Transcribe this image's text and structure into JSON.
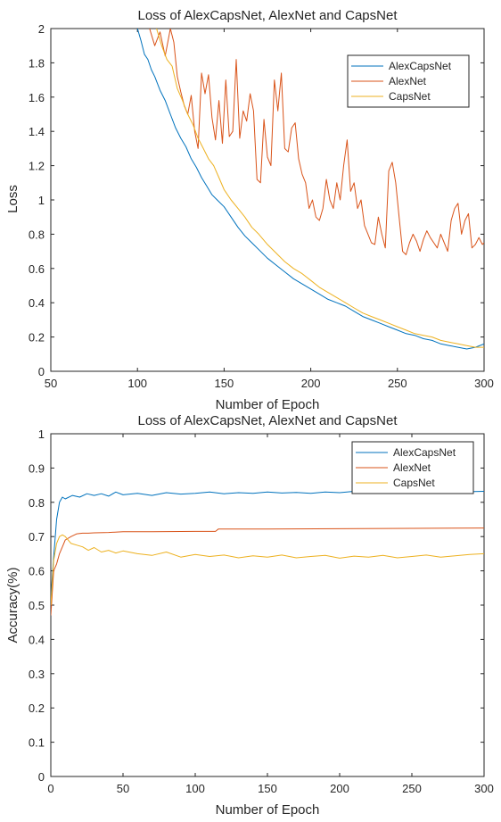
{
  "chart_data": [
    {
      "type": "line",
      "title": "Loss of AlexCapsNet, AlexNet and CapsNet",
      "xlabel": "Number of Epoch",
      "ylabel": "Loss",
      "xlim": [
        50,
        300
      ],
      "ylim": [
        0,
        2
      ],
      "xticks": [
        "50",
        "100",
        "150",
        "200",
        "250",
        "300"
      ],
      "yticks": [
        "0",
        "0.2",
        "0.4",
        "0.6",
        "0.8",
        "1",
        "1.2",
        "1.4",
        "1.6",
        "1.8",
        "2"
      ],
      "legend_position": "top-right",
      "grid": false,
      "series": [
        {
          "name": "AlexCapsNet",
          "color": "#0072BD",
          "x": [
            100,
            102,
            104,
            106,
            108,
            110,
            113,
            116,
            119,
            122,
            125,
            128,
            131,
            134,
            137,
            140,
            143,
            146,
            150,
            154,
            158,
            162,
            166,
            170,
            175,
            180,
            185,
            190,
            195,
            200,
            205,
            210,
            215,
            220,
            225,
            230,
            235,
            240,
            245,
            250,
            255,
            260,
            265,
            270,
            275,
            280,
            285,
            290,
            295,
            300
          ],
          "y": [
            2.0,
            1.93,
            1.85,
            1.82,
            1.76,
            1.72,
            1.64,
            1.58,
            1.5,
            1.42,
            1.36,
            1.31,
            1.24,
            1.19,
            1.13,
            1.08,
            1.03,
            1.0,
            0.96,
            0.9,
            0.84,
            0.79,
            0.75,
            0.71,
            0.66,
            0.62,
            0.58,
            0.54,
            0.51,
            0.48,
            0.45,
            0.42,
            0.4,
            0.38,
            0.35,
            0.32,
            0.3,
            0.28,
            0.26,
            0.24,
            0.22,
            0.21,
            0.19,
            0.18,
            0.16,
            0.15,
            0.14,
            0.13,
            0.14,
            0.16
          ]
        },
        {
          "name": "AlexNet",
          "color": "#D95319",
          "x": [
            107,
            110,
            113,
            116,
            119,
            121,
            123,
            125,
            127,
            129,
            131,
            133,
            135,
            137,
            139,
            141,
            143,
            145,
            147,
            149,
            151,
            153,
            155,
            157,
            159,
            161,
            163,
            165,
            167,
            169,
            171,
            173,
            175,
            177,
            179,
            181,
            183,
            185,
            187,
            189,
            191,
            193,
            195,
            197,
            199,
            201,
            203,
            205,
            207,
            209,
            211,
            213,
            215,
            217,
            219,
            221,
            223,
            225,
            227,
            229,
            231,
            233,
            235,
            237,
            239,
            241,
            243,
            245,
            247,
            249,
            251,
            253,
            255,
            257,
            259,
            261,
            263,
            265,
            267,
            269,
            271,
            273,
            275,
            277,
            279,
            281,
            283,
            285,
            287,
            289,
            291,
            293,
            295,
            297,
            299,
            300
          ],
          "y": [
            2.0,
            1.9,
            1.98,
            1.84,
            2.0,
            1.92,
            1.72,
            1.63,
            1.55,
            1.5,
            1.61,
            1.4,
            1.3,
            1.74,
            1.62,
            1.73,
            1.48,
            1.35,
            1.58,
            1.33,
            1.7,
            1.37,
            1.4,
            1.82,
            1.36,
            1.52,
            1.46,
            1.62,
            1.52,
            1.12,
            1.1,
            1.47,
            1.25,
            1.2,
            1.7,
            1.52,
            1.74,
            1.3,
            1.28,
            1.42,
            1.45,
            1.24,
            1.15,
            1.1,
            0.95,
            1.0,
            0.9,
            0.88,
            0.95,
            1.12,
            1.0,
            0.95,
            1.1,
            1.0,
            1.2,
            1.35,
            1.05,
            1.1,
            0.95,
            1.0,
            0.85,
            0.8,
            0.75,
            0.74,
            0.9,
            0.8,
            0.72,
            1.17,
            1.22,
            1.1,
            0.9,
            0.7,
            0.68,
            0.75,
            0.8,
            0.76,
            0.7,
            0.77,
            0.82,
            0.78,
            0.75,
            0.72,
            0.8,
            0.75,
            0.7,
            0.88,
            0.95,
            0.98,
            0.8,
            0.88,
            0.92,
            0.72,
            0.74,
            0.78,
            0.74,
            0.75
          ]
        },
        {
          "name": "CapsNet",
          "color": "#EDB120",
          "x": [
            111,
            114,
            117,
            120,
            123,
            126,
            129,
            132,
            135,
            138,
            141,
            144,
            147,
            150,
            154,
            158,
            162,
            166,
            170,
            175,
            180,
            185,
            190,
            195,
            200,
            205,
            210,
            215,
            220,
            225,
            230,
            235,
            240,
            245,
            250,
            255,
            260,
            265,
            270,
            275,
            280,
            285,
            290,
            295,
            300
          ],
          "y": [
            2.0,
            1.9,
            1.82,
            1.78,
            1.65,
            1.58,
            1.5,
            1.44,
            1.36,
            1.3,
            1.24,
            1.2,
            1.13,
            1.06,
            1.0,
            0.95,
            0.9,
            0.84,
            0.8,
            0.74,
            0.69,
            0.64,
            0.6,
            0.57,
            0.53,
            0.49,
            0.46,
            0.43,
            0.4,
            0.37,
            0.34,
            0.32,
            0.3,
            0.28,
            0.26,
            0.24,
            0.22,
            0.21,
            0.2,
            0.18,
            0.17,
            0.16,
            0.15,
            0.14,
            0.14
          ]
        }
      ]
    },
    {
      "type": "line",
      "title": "Loss of AlexCapsNet, AlexNet and CapsNet",
      "xlabel": "Number of Epoch",
      "ylabel": "Accuracy(%)",
      "xlim": [
        0,
        300
      ],
      "ylim": [
        0,
        1
      ],
      "xticks": [
        "0",
        "50",
        "100",
        "150",
        "200",
        "250",
        "300"
      ],
      "yticks": [
        "0",
        "0.1",
        "0.2",
        "0.3",
        "0.4",
        "0.5",
        "0.6",
        "0.7",
        "0.8",
        "0.9",
        "1"
      ],
      "legend_position": "top-right",
      "grid": false,
      "series": [
        {
          "name": "AlexCapsNet",
          "color": "#0072BD",
          "x": [
            0,
            2,
            4,
            6,
            8,
            10,
            15,
            20,
            25,
            30,
            35,
            40,
            45,
            50,
            60,
            70,
            80,
            90,
            100,
            110,
            120,
            130,
            140,
            150,
            160,
            170,
            180,
            190,
            200,
            210,
            220,
            230,
            240,
            250,
            260,
            270,
            280,
            290,
            300
          ],
          "y": [
            0.52,
            0.64,
            0.75,
            0.8,
            0.815,
            0.81,
            0.82,
            0.815,
            0.825,
            0.82,
            0.825,
            0.818,
            0.83,
            0.822,
            0.826,
            0.82,
            0.828,
            0.824,
            0.826,
            0.83,
            0.825,
            0.828,
            0.826,
            0.83,
            0.827,
            0.829,
            0.826,
            0.83,
            0.828,
            0.832,
            0.829,
            0.831,
            0.83,
            0.833,
            0.83,
            0.832,
            0.834,
            0.831,
            0.832
          ]
        },
        {
          "name": "AlexNet",
          "color": "#D95319",
          "x": [
            0,
            2,
            4,
            6,
            8,
            10,
            14,
            18,
            22,
            26,
            30,
            40,
            50,
            70,
            100,
            114,
            116,
            150,
            200,
            250,
            300
          ],
          "y": [
            0.47,
            0.6,
            0.62,
            0.65,
            0.67,
            0.69,
            0.7,
            0.708,
            0.71,
            0.71,
            0.711,
            0.712,
            0.714,
            0.714,
            0.715,
            0.715,
            0.722,
            0.722,
            0.723,
            0.724,
            0.725
          ]
        },
        {
          "name": "CapsNet",
          "color": "#EDB120",
          "x": [
            0,
            2,
            4,
            6,
            8,
            10,
            14,
            18,
            22,
            26,
            30,
            35,
            40,
            45,
            50,
            60,
            70,
            80,
            90,
            100,
            110,
            120,
            130,
            140,
            150,
            160,
            170,
            180,
            190,
            200,
            210,
            220,
            230,
            240,
            250,
            260,
            270,
            280,
            290,
            300
          ],
          "y": [
            0.5,
            0.63,
            0.68,
            0.7,
            0.705,
            0.7,
            0.68,
            0.675,
            0.67,
            0.66,
            0.668,
            0.655,
            0.66,
            0.652,
            0.658,
            0.65,
            0.645,
            0.655,
            0.64,
            0.648,
            0.642,
            0.646,
            0.638,
            0.644,
            0.64,
            0.646,
            0.638,
            0.642,
            0.645,
            0.637,
            0.643,
            0.64,
            0.645,
            0.638,
            0.642,
            0.646,
            0.64,
            0.644,
            0.648,
            0.65
          ]
        }
      ]
    }
  ]
}
